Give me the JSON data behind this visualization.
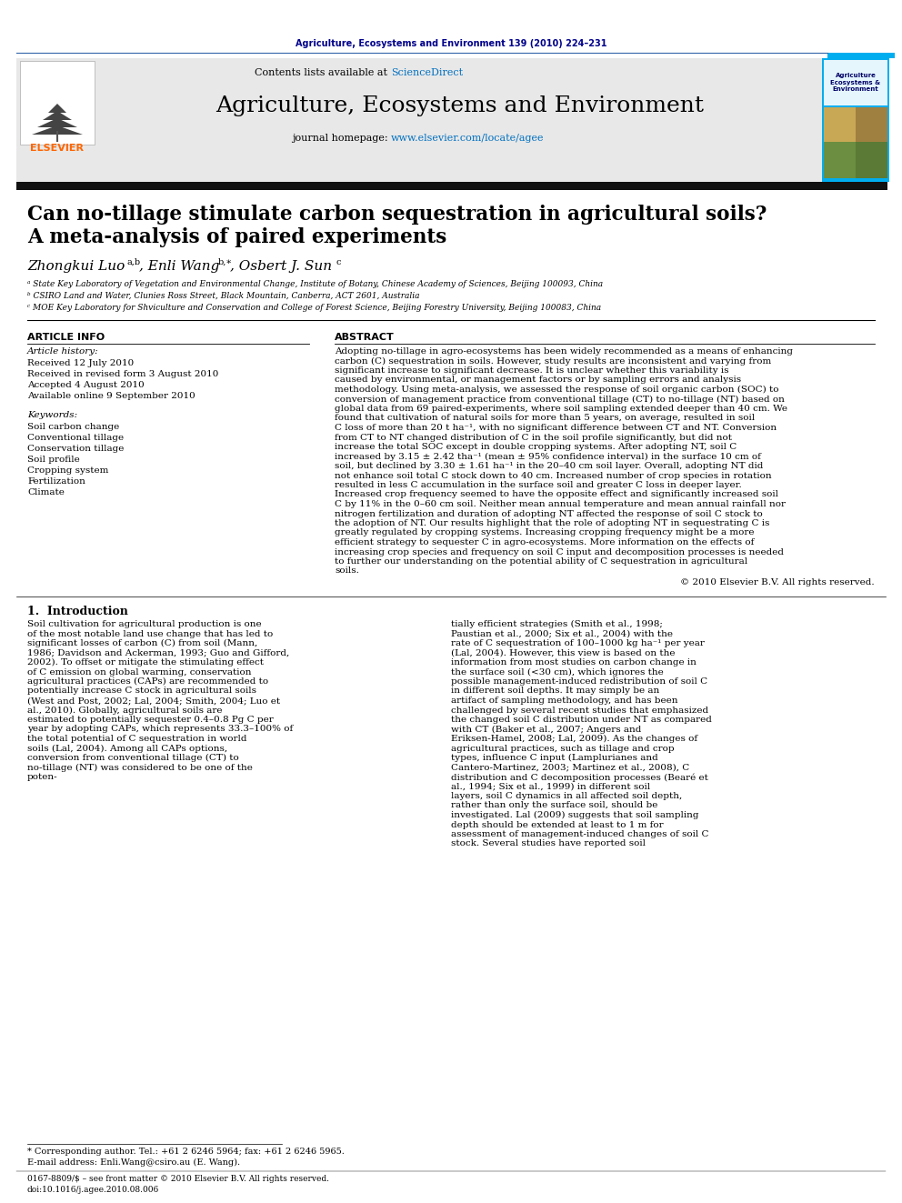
{
  "journal_citation": "Agriculture, Ecosystems and Environment 139 (2010) 224–231",
  "journal_citation_color": "#00008B",
  "header_bg_color": "#E8E8E8",
  "journal_title": "Agriculture, Ecosystems and Environment",
  "contents_text": "Contents lists available at ",
  "sciencedirect_text": "ScienceDirect",
  "sciencedirect_color": "#0070C0",
  "homepage_text": "journal homepage: ",
  "homepage_url": "www.elsevier.com/locate/agee",
  "homepage_url_color": "#0070C0",
  "elsevier_color": "#FF6600",
  "cyan_bar_color": "#00AEEF",
  "paper_title_line1": "Can no-tillage stimulate carbon sequestration in agricultural soils?",
  "paper_title_line2": "A meta-analysis of paired experiments",
  "affil_a": "ᵃ State Key Laboratory of Vegetation and Environmental Change, Institute of Botany, Chinese Academy of Sciences, Beijing 100093, China",
  "affil_b": "ᵇ CSIRO Land and Water, Clunies Ross Street, Black Mountain, Canberra, ACT 2601, Australia",
  "affil_c": "ᶜ MOE Key Laboratory for Shviculture and Conservation and College of Forest Science, Beijing Forestry University, Beijing 100083, China",
  "article_info_header": "ARTICLE INFO",
  "abstract_header": "ABSTRACT",
  "article_history_label": "Article history:",
  "received1": "Received 12 July 2010",
  "received2": "Received in revised form 3 August 2010",
  "accepted": "Accepted 4 August 2010",
  "available": "Available online 9 September 2010",
  "keywords_label": "Keywords:",
  "keywords": [
    "Soil carbon change",
    "Conventional tillage",
    "Conservation tillage",
    "Soil profile",
    "Cropping system",
    "Fertilization",
    "Climate"
  ],
  "abstract_text": "Adopting no-tillage in agro-ecosystems has been widely recommended as a means of enhancing carbon (C) sequestration in soils. However, study results are inconsistent and varying from significant increase to significant decrease. It is unclear whether this variability is caused by environmental, or management factors or by sampling errors and analysis methodology. Using meta-analysis, we assessed the response of soil organic carbon (SOC) to conversion of management practice from conventional tillage (CT) to no-tillage (NT) based on global data from 69 paired-experiments, where soil sampling extended deeper than 40 cm. We found that cultivation of natural soils for more than 5 years, on average, resulted in soil C loss of more than 20 t ha⁻¹, with no significant difference between CT and NT. Conversion from CT to NT changed distribution of C in the soil profile significantly, but did not increase the total SOC except in double cropping systems. After adopting NT, soil C increased by 3.15 ± 2.42 tha⁻¹ (mean ± 95% confidence interval) in the surface 10 cm of soil, but declined by 3.30 ± 1.61 ha⁻¹ in the 20–40 cm soil layer. Overall, adopting NT did not enhance soil total C stock down to 40 cm. Increased number of crop species in rotation resulted in less C accumulation in the surface soil and greater C loss in deeper layer. Increased crop frequency seemed to have the opposite effect and significantly increased soil C by 11% in the 0–60 cm soil. Neither mean annual temperature and mean annual rainfall nor nitrogen fertilization and duration of adopting NT affected the response of soil C stock to the adoption of NT. Our results highlight that the role of adopting NT in sequestrating C is greatly regulated by cropping systems. Increasing cropping frequency might be a more efficient strategy to sequester C in agro-ecosystems. More information on the effects of increasing crop species and frequency on soil C input and decomposition processes is needed to further our understanding on the potential ability of C sequestration in agricultural soils.",
  "copyright_text": "© 2010 Elsevier B.V. All rights reserved.",
  "intro_header": "1.  Introduction",
  "intro_text_col1": "     Soil cultivation for agricultural production is one of the most notable land use change that has led to significant losses of carbon (C) from soil (Mann, 1986; Davidson and Ackerman, 1993; Guo and Gifford, 2002). To offset or mitigate the stimulating effect of C emission on global warming, conservation agricultural practices (CAPs) are recommended to potentially increase C stock in agricultural soils (West and Post, 2002; Lal, 2004; Smith, 2004; Luo et al., 2010). Globally, agricultural soils are estimated to potentially sequester 0.4–0.8 Pg C per year by adopting CAPs, which represents 33.3–100% of the total potential of C sequestration in world soils (Lal, 2004). Among all CAPs options, conversion from conventional tillage (CT) to no-tillage (NT) was considered to be one of the poten-",
  "intro_text_col2": "tially efficient strategies (Smith et al., 1998; Paustian et al., 2000; Six et al., 2004) with the rate of C sequestration of 100–1000 kg ha⁻¹ per year (Lal, 2004). However, this view is based on the information from most studies on carbon change in the surface soil (<30 cm), which ignores the possible management-induced redistribution of soil C in different soil depths. It may simply be an artifact of sampling methodology, and has been challenged by several recent studies that emphasized the changed soil C distribution under NT as compared with CT (Baker et al., 2007; Angers and Eriksen-Hamel, 2008; Lal, 2009).\n     As the changes of agricultural practices, such as tillage and crop types, influence C input (Lamplurianes and Cantero-Martinez, 2003; Martinez et al., 2008), C distribution and C decomposition processes (Bearé et al., 1994; Six et al., 1999) in different soil layers, soil C dynamics in all affected soil depth, rather than only the surface soil, should be investigated. Lal (2009) suggests that soil sampling depth should be extended at least to 1 m for assessment of management-induced changes of soil C stock. Several studies have reported soil",
  "footnote_star": "* Corresponding author. Tel.: +61 2 6246 5964; fax: +61 2 6246 5965.",
  "footnote_email": "E-mail address: Enli.Wang@csiro.au (E. Wang).",
  "bottom_text1": "0167-8809/$ – see front matter © 2010 Elsevier B.V. All rights reserved.",
  "bottom_text2": "doi:10.1016/j.agee.2010.08.006",
  "bg_color": "#FFFFFF"
}
